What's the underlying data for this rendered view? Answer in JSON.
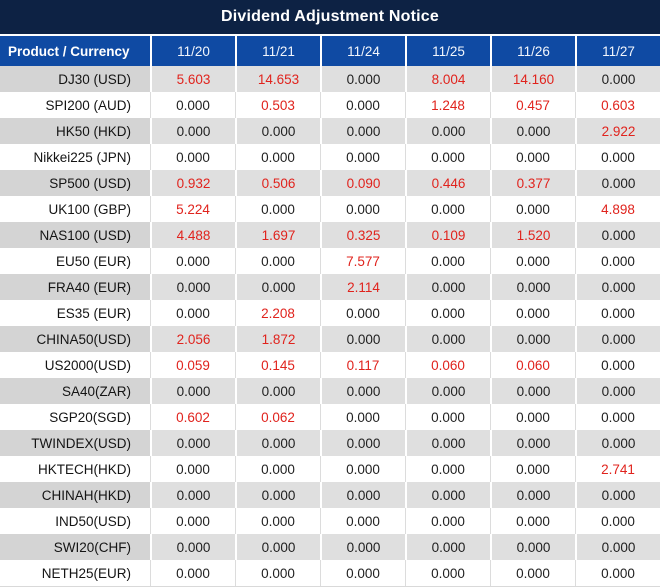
{
  "title": "Dividend Adjustment Notice",
  "colors": {
    "title_bg": "#0d2244",
    "header_bg": "#0f4aa3",
    "row_gray_col1": "#d4d4d4",
    "row_gray": "#dfdfdf",
    "value_red": "#e0231d",
    "value_black": "#1f1f1f"
  },
  "table": {
    "header": {
      "product_label": "Product / Currency",
      "dates": [
        "11/20",
        "11/21",
        "11/24",
        "11/25",
        "11/26",
        "11/27"
      ]
    },
    "rows": [
      {
        "product": "DJ30 (USD)",
        "values": [
          "5.603",
          "14.653",
          "0.000",
          "8.004",
          "14.160",
          "0.000"
        ]
      },
      {
        "product": "SPI200 (AUD)",
        "values": [
          "0.000",
          "0.503",
          "0.000",
          "1.248",
          "0.457",
          "0.603"
        ]
      },
      {
        "product": "HK50 (HKD)",
        "values": [
          "0.000",
          "0.000",
          "0.000",
          "0.000",
          "0.000",
          "2.922"
        ]
      },
      {
        "product": "Nikkei225 (JPN)",
        "values": [
          "0.000",
          "0.000",
          "0.000",
          "0.000",
          "0.000",
          "0.000"
        ]
      },
      {
        "product": "SP500 (USD)",
        "values": [
          "0.932",
          "0.506",
          "0.090",
          "0.446",
          "0.377",
          "0.000"
        ]
      },
      {
        "product": "UK100 (GBP)",
        "values": [
          "5.224",
          "0.000",
          "0.000",
          "0.000",
          "0.000",
          "4.898"
        ]
      },
      {
        "product": "NAS100 (USD)",
        "values": [
          "4.488",
          "1.697",
          "0.325",
          "0.109",
          "1.520",
          "0.000"
        ]
      },
      {
        "product": "EU50 (EUR)",
        "values": [
          "0.000",
          "0.000",
          "7.577",
          "0.000",
          "0.000",
          "0.000"
        ]
      },
      {
        "product": "FRA40 (EUR)",
        "values": [
          "0.000",
          "0.000",
          "2.114",
          "0.000",
          "0.000",
          "0.000"
        ]
      },
      {
        "product": "ES35 (EUR)",
        "values": [
          "0.000",
          "2.208",
          "0.000",
          "0.000",
          "0.000",
          "0.000"
        ]
      },
      {
        "product": "CHINA50(USD)",
        "values": [
          "2.056",
          "1.872",
          "0.000",
          "0.000",
          "0.000",
          "0.000"
        ]
      },
      {
        "product": "US2000(USD)",
        "values": [
          "0.059",
          "0.145",
          "0.117",
          "0.060",
          "0.060",
          "0.000"
        ]
      },
      {
        "product": "SA40(ZAR)",
        "values": [
          "0.000",
          "0.000",
          "0.000",
          "0.000",
          "0.000",
          "0.000"
        ]
      },
      {
        "product": "SGP20(SGD)",
        "values": [
          "0.602",
          "0.062",
          "0.000",
          "0.000",
          "0.000",
          "0.000"
        ]
      },
      {
        "product": "TWINDEX(USD)",
        "values": [
          "0.000",
          "0.000",
          "0.000",
          "0.000",
          "0.000",
          "0.000"
        ]
      },
      {
        "product": "HKTECH(HKD)",
        "values": [
          "0.000",
          "0.000",
          "0.000",
          "0.000",
          "0.000",
          "2.741"
        ]
      },
      {
        "product": "CHINAH(HKD)",
        "values": [
          "0.000",
          "0.000",
          "0.000",
          "0.000",
          "0.000",
          "0.000"
        ]
      },
      {
        "product": "IND50(USD)",
        "values": [
          "0.000",
          "0.000",
          "0.000",
          "0.000",
          "0.000",
          "0.000"
        ]
      },
      {
        "product": "SWI20(CHF)",
        "values": [
          "0.000",
          "0.000",
          "0.000",
          "0.000",
          "0.000",
          "0.000"
        ]
      },
      {
        "product": "NETH25(EUR)",
        "values": [
          "0.000",
          "0.000",
          "0.000",
          "0.000",
          "0.000",
          "0.000"
        ]
      }
    ]
  }
}
